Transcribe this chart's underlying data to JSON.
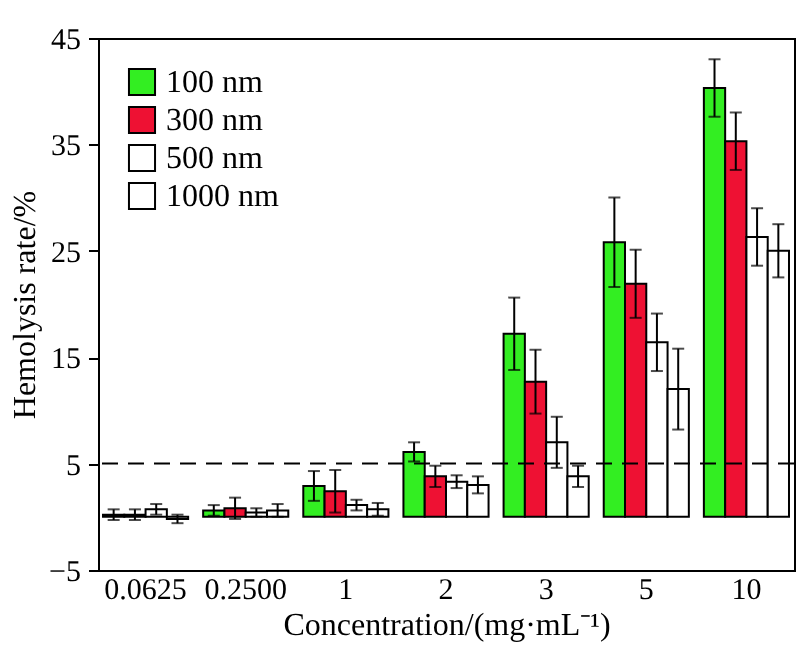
{
  "chart_data": {
    "type": "bar",
    "xlabel": "Concentration/(mg·mL⁻¹)",
    "ylabel": "Hemolysis rate/%",
    "categories": [
      "0.0625",
      "0.2500",
      "1",
      "2",
      "3",
      "5",
      "10"
    ],
    "series": [
      {
        "name": "100 nm",
        "color": "#33ee22",
        "values": [
          0.2,
          0.6,
          2.9,
          6.1,
          17.2,
          25.8,
          40.3
        ],
        "errors": [
          0.5,
          0.5,
          1.4,
          0.9,
          3.4,
          4.2,
          2.7
        ]
      },
      {
        "name": "300 nm",
        "color": "#ee1133",
        "values": [
          0.2,
          0.8,
          2.4,
          3.8,
          12.7,
          21.9,
          35.3
        ],
        "errors": [
          0.5,
          1,
          2,
          1,
          3,
          3.2,
          2.7
        ]
      },
      {
        "name": "500 nm",
        "color": "#ffffff",
        "values": [
          0.7,
          0.4,
          1.1,
          3.3,
          7.0,
          16.4,
          26.3
        ],
        "errors": [
          0.5,
          0.4,
          0.5,
          0.6,
          2.4,
          2.7,
          2.7
        ]
      },
      {
        "name": "1000 nm",
        "color": "#ffffff",
        "values": [
          -0.2,
          0.6,
          0.7,
          3.0,
          3.8,
          12.0,
          25.0
        ],
        "errors": [
          0.4,
          0.6,
          0.6,
          0.8,
          1,
          3.8,
          2.5
        ]
      }
    ],
    "ylim": [
      -5,
      45
    ],
    "yticks": [
      -5,
      5,
      15,
      25,
      35,
      45
    ],
    "grid": false,
    "legend": "top left",
    "ref_lines": [
      {
        "axis": "y",
        "value": 5,
        "line_style": "dashed"
      }
    ]
  }
}
